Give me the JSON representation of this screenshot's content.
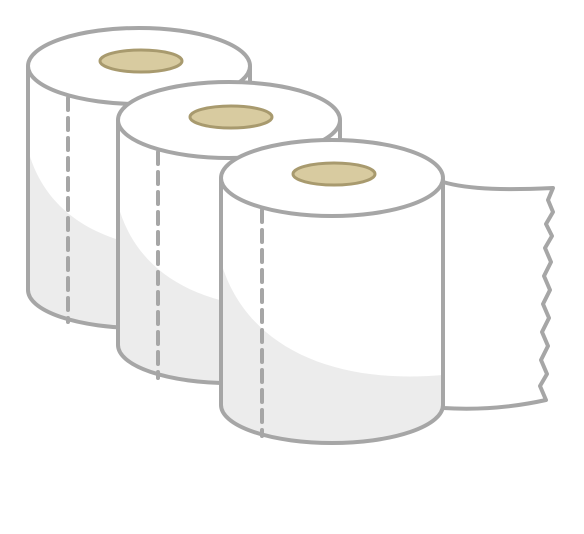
{
  "illustration": {
    "subject": "toilet-paper-rolls",
    "roll_count": 3,
    "colors": {
      "background": "#ffffff",
      "outline": "#a6a6a6",
      "paper": "#ffffff",
      "paper_shade": "#ececec",
      "core_fill": "#d8cba0",
      "core_outline": "#a89a6e",
      "perforation": "#a6a6a6"
    }
  }
}
